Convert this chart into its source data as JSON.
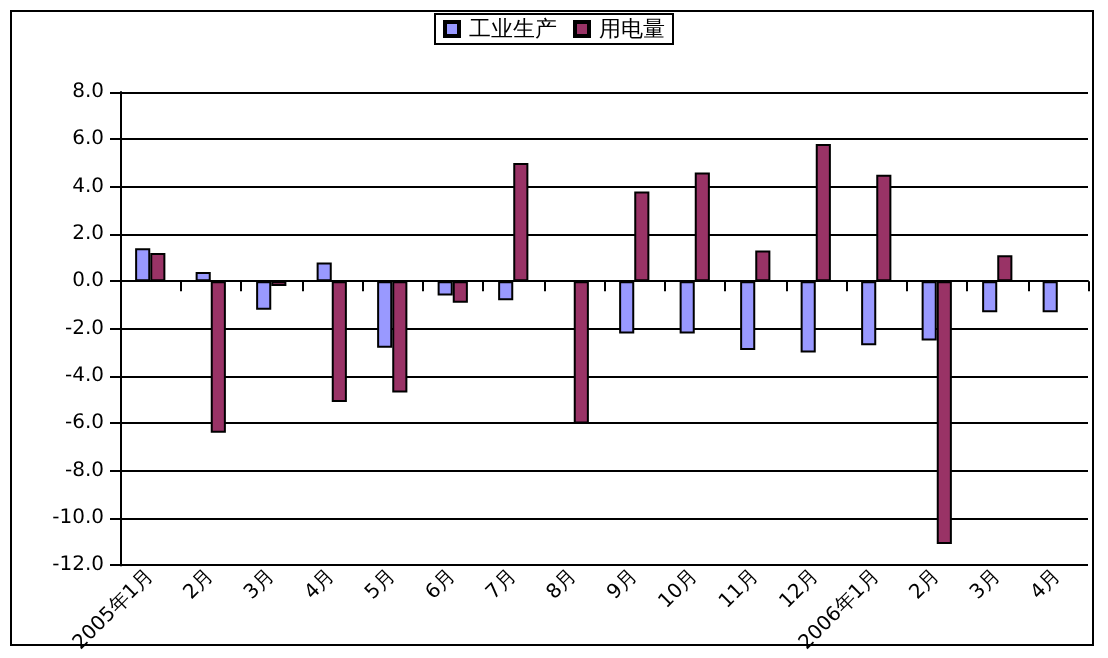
{
  "chart_data": {
    "type": "bar",
    "categories": [
      "2005年1月",
      "2月",
      "3月",
      "4月",
      "5月",
      "6月",
      "7月",
      "8月",
      "9月",
      "10月",
      "11月",
      "12月",
      "2006年1月",
      "2月",
      "3月",
      "4月"
    ],
    "series": [
      {
        "name": "工业生产",
        "color": "#9999ff",
        "values": [
          1.4,
          0.4,
          -1.2,
          0.8,
          -2.8,
          -0.6,
          -0.8,
          null,
          -2.2,
          -2.2,
          -2.9,
          -3.0,
          -2.7,
          -2.5,
          -1.3,
          -1.3
        ]
      },
      {
        "name": "用电量",
        "color": "#993366",
        "values": [
          1.2,
          -6.4,
          -0.2,
          -5.1,
          -4.7,
          -0.9,
          5.0,
          -6.0,
          3.8,
          4.6,
          1.3,
          5.8,
          4.5,
          -11.1,
          1.1,
          null
        ]
      }
    ],
    "ylim": [
      -12,
      8
    ],
    "yticks": [
      {
        "value": -12,
        "label": "-12.0"
      },
      {
        "value": -10,
        "label": "-10.0"
      },
      {
        "value": -8,
        "label": "-8.0"
      },
      {
        "value": -6,
        "label": "-6.0"
      },
      {
        "value": -4,
        "label": "-4.0"
      },
      {
        "value": -2,
        "label": "-2.0"
      },
      {
        "value": 0,
        "label": "0.0"
      },
      {
        "value": 2,
        "label": "2.0"
      },
      {
        "value": 4,
        "label": "4.0"
      },
      {
        "value": 6,
        "label": "6.0"
      },
      {
        "value": 8,
        "label": "8.0"
      }
    ],
    "grid": "y",
    "legend": "top"
  }
}
